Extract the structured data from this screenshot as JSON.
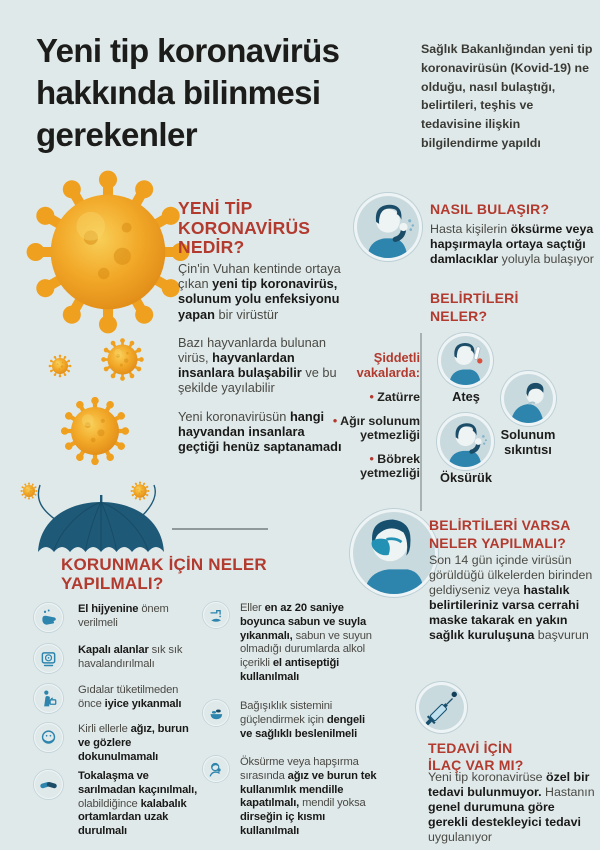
{
  "header": {
    "title": "Yeni tip koronavirüs\nhakkında bilinmesi\ngerekenler",
    "intro": "Sağlık Bakanlığından yeni tip koronavirüsün (Kovid-19) ne olduğu, nasıl bulaştığı, belirtileri, teşhis ve tedavisine ilişkin bilgilendirme yapıldı"
  },
  "colors": {
    "background": "#e0e9ea",
    "heading_red": "#b23a2e",
    "text_dark": "#1c1c1a",
    "icon_blue": "#2d85ae",
    "icon_navy": "#1b4d68",
    "circle_fill": "#c9dade",
    "virus_orange": "#f0a224",
    "umbrella_teal": "#1e5977"
  },
  "illustrations": {
    "virus": "coronavirus-illustration",
    "umbrella": "umbrella-protection-illustration"
  },
  "nedir": {
    "heading": "YENİ TİP\nKORONAVİRÜS\nNEDİR?",
    "paragraphs": [
      [
        {
          "t": "Çin'in Vuhan kentinde ortaya çıkan "
        },
        {
          "t": "yeni tip koronavirüs, solunum yolu enfeksiyonu yapan",
          "b": true
        },
        {
          "t": " bir virüstür"
        }
      ],
      [
        {
          "t": "Bazı hayvanlarda bulunan virüs, "
        },
        {
          "t": "hayvanlardan insanlara bulaşabilir",
          "b": true
        },
        {
          "t": " ve bu şekilde yayılabilir"
        }
      ],
      [
        {
          "t": "Yeni koronavirüsün "
        },
        {
          "t": "hangi hayvandan insanlara geçtiği henüz saptanamadı",
          "b": true
        }
      ]
    ]
  },
  "bulasir": {
    "heading": "NASIL BULAŞIR?",
    "icon": "coughing-person-icon",
    "text": [
      {
        "t": "Hasta kişilerin "
      },
      {
        "t": "öksürme veya hapşırmayla ortaya saçtığı damlacıklar",
        "b": true
      },
      {
        "t": " yoluyla bulaşıyor"
      }
    ]
  },
  "belirtiler": {
    "heading": "BELİRTİLERİ\nNELER?",
    "severe_label": "Şiddetli\nvakalarda:",
    "severe_items": [
      "Zatürre",
      "Ağır solunum yetmezliği",
      "Böbrek yetmezliği"
    ],
    "symptoms": [
      {
        "label": "Ateş",
        "icon": "fever-icon"
      },
      {
        "label": "Solunum sıkıntısı",
        "icon": "breathing-difficulty-icon"
      },
      {
        "label": "Öksürük",
        "icon": "cough-icon"
      }
    ]
  },
  "belirtiler_varsa": {
    "heading": "BELİRTİLERİ VARSA\nNELER YAPILMALI?",
    "icon": "masked-person-icon",
    "text": [
      {
        "t": "Son 14 gün içinde virüsün görüldüğü ülkelerden birinden geldiyseniz veya "
      },
      {
        "t": "hastalık belirtileriniz varsa cerrahi maske takarak en yakın sağlık kuruluşuna",
        "b": true
      },
      {
        "t": " başvurun"
      }
    ]
  },
  "tedavi": {
    "heading": "TEDAVİ İÇİN\nİLAÇ VAR MI?",
    "icon": "syringe-icon",
    "text": [
      {
        "t": "Yeni tip koronavirüse "
      },
      {
        "t": "özel bir tedavi bulunmuyor.",
        "b": true
      },
      {
        "t": " Hastanın "
      },
      {
        "t": "genel durumuna göre gerekli destekleyici tedavi",
        "b": true
      },
      {
        "t": " uygulanıyor"
      }
    ]
  },
  "korunmak": {
    "heading": "KORUNMAK İÇİN NELER\nYAPILMALI?",
    "left_items": [
      {
        "icon": "hand-hygiene-icon",
        "text": [
          {
            "t": "El hijyenine",
            "b": true
          },
          {
            "t": " önem verilmeli"
          }
        ]
      },
      {
        "icon": "ventilation-icon",
        "text": [
          {
            "t": "Kapalı alanlar",
            "b": true
          },
          {
            "t": " sık sık havalandırılmalı"
          }
        ]
      },
      {
        "icon": "food-washing-icon",
        "text": [
          {
            "t": "Gıdalar tüketilmeden önce "
          },
          {
            "t": "iyice yıkanmalı",
            "b": true
          }
        ]
      },
      {
        "icon": "face-touch-icon",
        "text": [
          {
            "t": "Kirli ellerle "
          },
          {
            "t": "ağız, burun ve gözlere dokunulmamalı",
            "b": true
          }
        ]
      },
      {
        "icon": "handshake-icon",
        "text": [
          {
            "t": "Tokalaşma ve sarılmadan kaçınılmalı,",
            "b": true
          },
          {
            "t": " olabildiğince "
          },
          {
            "t": "kalabalık ortamlardan uzak durulmalı",
            "b": true
          }
        ]
      }
    ],
    "right_items": [
      {
        "icon": "hand-washing-icon",
        "text": [
          {
            "t": "Eller "
          },
          {
            "t": "en az 20 saniye boyunca sabun ve suyla yıkanmalı,",
            "b": true
          },
          {
            "t": " sabun ve suyun olmadığı durumlarda alkol içerikli "
          },
          {
            "t": "el antiseptiği kullanılmalı",
            "b": true
          }
        ]
      },
      {
        "icon": "healthy-food-icon",
        "text": [
          {
            "t": "Bağışıklık sistemini güçlendirmek için "
          },
          {
            "t": "dengeli ve sağlıklı beslenilmeli",
            "b": true
          }
        ]
      },
      {
        "icon": "cover-cough-icon",
        "text": [
          {
            "t": "Öksürme veya hapşırma sırasında "
          },
          {
            "t": "ağız ve burun tek kullanımlık mendille kapatılmalı,",
            "b": true
          },
          {
            "t": " mendil yoksa "
          },
          {
            "t": "dirseğin iç kısmı kullanılmalı",
            "b": true
          }
        ]
      }
    ]
  }
}
